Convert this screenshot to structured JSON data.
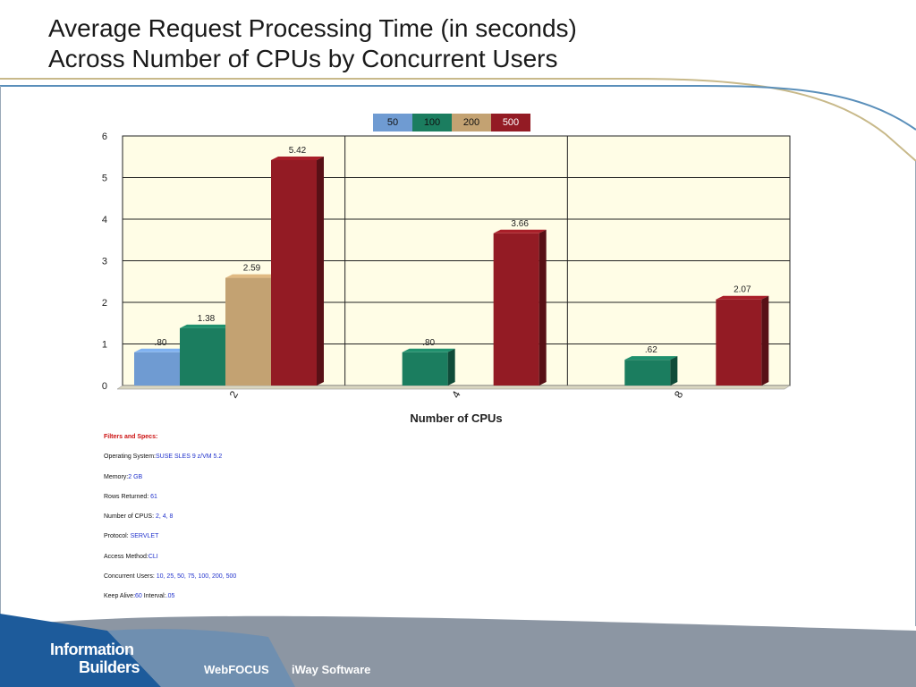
{
  "slide": {
    "title_line1": "Average Request Processing Time (in seconds)",
    "title_line2": "Across Number of CPUs by Concurrent Users"
  },
  "chart_data": {
    "type": "bar",
    "xlabel": "Number of CPUs",
    "ylabel": "",
    "categories": [
      "2",
      "4",
      "8"
    ],
    "ylim": [
      0,
      6
    ],
    "yticks": [
      "0",
      "1",
      "2",
      "3",
      "4",
      "5",
      "6"
    ],
    "legend_position": "top-center",
    "grid": true,
    "series": [
      {
        "name": "50",
        "color": "#6f9bd2",
        "values": [
          0.8,
          null,
          null
        ],
        "labels": [
          ".80",
          "",
          ""
        ]
      },
      {
        "name": "100",
        "color": "#1b7d5f",
        "values": [
          1.38,
          0.8,
          0.62
        ],
        "labels": [
          "1.38",
          ".80",
          ".62"
        ]
      },
      {
        "name": "200",
        "color": "#c3a272",
        "values": [
          2.59,
          null,
          null
        ],
        "labels": [
          "2.59",
          "",
          ""
        ]
      },
      {
        "name": "500",
        "color": "#931b24",
        "values": [
          5.42,
          3.66,
          2.07
        ],
        "labels": [
          "5.42",
          "3.66",
          "2.07"
        ]
      }
    ]
  },
  "specs": {
    "header": "Filters and Specs:",
    "os_label": "Operating System:",
    "os_value": "SUSE SLES 9 z/VM 5.2",
    "memory_label": "Memory:",
    "memory_value": "2 GB",
    "rows_label": "Rows Returned:",
    "rows_value": "61",
    "cpus_label": "Number of CPUS:",
    "cpus_value": "2, 4, 8",
    "protocol_label": "Protocol:",
    "protocol_value": "SERVLET",
    "access_label": "Access Method:",
    "access_value": "CLI",
    "users_label": "Concurrent Users:",
    "users_value": "10, 25, 50, 75, 100, 200, 500",
    "keepalive_label": "Keep Alive:",
    "keepalive_value": "60",
    "interval_label": "Interval:",
    "interval_value": ".05"
  },
  "footer": {
    "logo_line1": "Information",
    "logo_line2": "Builders",
    "product1": "WebFOCUS",
    "product2": "iWay Software"
  }
}
